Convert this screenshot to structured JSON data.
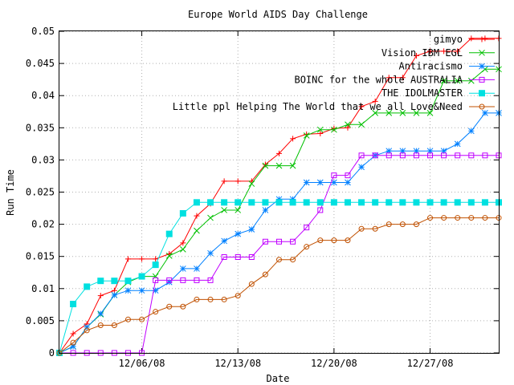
{
  "chart_data": {
    "type": "line",
    "title": "Europe World AIDS Day Challenge",
    "xlabel": "Date",
    "ylabel": "Run Time",
    "xlim": [
      "2008-11-30",
      "2009-01-01"
    ],
    "ylim": [
      0,
      0.05
    ],
    "x_ticks": [
      {
        "label": "12/06/08",
        "value": "2008-12-06"
      },
      {
        "label": "12/13/08",
        "value": "2008-12-13"
      },
      {
        "label": "12/20/08",
        "value": "2008-12-20"
      },
      {
        "label": "12/27/08",
        "value": "2008-12-27"
      }
    ],
    "y_ticks": [
      "0",
      "0.005",
      "0.01",
      "0.015",
      "0.02",
      "0.025",
      "0.03",
      "0.035",
      "0.04",
      "0.045",
      "0.05"
    ],
    "legend_position": "top-right",
    "x": [
      "2008-11-30",
      "2008-12-01",
      "2008-12-02",
      "2008-12-03",
      "2008-12-04",
      "2008-12-05",
      "2008-12-06",
      "2008-12-07",
      "2008-12-08",
      "2008-12-09",
      "2008-12-10",
      "2008-12-11",
      "2008-12-12",
      "2008-12-13",
      "2008-12-14",
      "2008-12-15",
      "2008-12-16",
      "2008-12-17",
      "2008-12-18",
      "2008-12-19",
      "2008-12-20",
      "2008-12-21",
      "2008-12-22",
      "2008-12-23",
      "2008-12-24",
      "2008-12-25",
      "2008-12-26",
      "2008-12-27",
      "2008-12-28",
      "2008-12-29",
      "2008-12-30",
      "2008-12-31",
      "2009-01-01"
    ],
    "series": [
      {
        "name": "gimyo",
        "color": "#ff0000",
        "marker": "plus",
        "values": [
          0,
          0.003,
          0.0045,
          0.0089,
          0.0097,
          0.0146,
          0.0146,
          0.0146,
          0.0154,
          0.0171,
          0.0213,
          0.0232,
          0.0267,
          0.0267,
          0.0267,
          0.0293,
          0.031,
          0.0333,
          0.034,
          0.0341,
          0.0349,
          0.035,
          0.0383,
          0.0391,
          0.0428,
          0.0428,
          0.0462,
          0.0469,
          0.0469,
          0.0469,
          0.0489,
          0.0489,
          0.0489
        ]
      },
      {
        "name": "Vision IBM EGL",
        "color": "#00c000",
        "marker": "x",
        "values": [
          0,
          0.001,
          0.004,
          0.006,
          0.009,
          0.011,
          0.0119,
          0.0119,
          0.0151,
          0.0161,
          0.019,
          0.021,
          0.0222,
          0.0222,
          0.0263,
          0.0291,
          0.0291,
          0.0291,
          0.0338,
          0.0347,
          0.0347,
          0.0355,
          0.0355,
          0.0373,
          0.0373,
          0.0373,
          0.0373,
          0.0373,
          0.0423,
          0.0423,
          0.0423,
          0.0441,
          0.0441
        ]
      },
      {
        "name": "Antiracismo",
        "color": "#0080ff",
        "marker": "star",
        "values": [
          0,
          0.001,
          0.004,
          0.0061,
          0.009,
          0.0097,
          0.0097,
          0.0097,
          0.011,
          0.0131,
          0.0131,
          0.0155,
          0.0174,
          0.0185,
          0.0192,
          0.0222,
          0.0239,
          0.0239,
          0.0265,
          0.0265,
          0.0265,
          0.0265,
          0.0289,
          0.0307,
          0.0314,
          0.0314,
          0.0314,
          0.0314,
          0.0314,
          0.0325,
          0.0345,
          0.0373,
          0.0373
        ]
      },
      {
        "name": "BOINC for the whole AUSTRALIA",
        "color": "#c000ff",
        "marker": "box",
        "values": [
          0,
          0,
          0,
          0,
          0,
          0,
          0,
          0.0113,
          0.0113,
          0.0113,
          0.0113,
          0.0113,
          0.0149,
          0.0149,
          0.0149,
          0.0173,
          0.0173,
          0.0173,
          0.0195,
          0.0222,
          0.0276,
          0.0276,
          0.0307,
          0.0307,
          0.0307,
          0.0307,
          0.0307,
          0.0307,
          0.0307,
          0.0307,
          0.0307,
          0.0307,
          0.0307
        ]
      },
      {
        "name": "THE IDOLMASTER",
        "color": "#00e0e0",
        "marker": "filledbox",
        "values": [
          0,
          0.0076,
          0.0103,
          0.0112,
          0.0112,
          0.0112,
          0.0119,
          0.0137,
          0.0185,
          0.0217,
          0.0234,
          0.0234,
          0.0234,
          0.0234,
          0.0234,
          0.0234,
          0.0234,
          0.0234,
          0.0234,
          0.0234,
          0.0234,
          0.0234,
          0.0234,
          0.0234,
          0.0234,
          0.0234,
          0.0234,
          0.0234,
          0.0234,
          0.0234,
          0.0234,
          0.0234,
          0.0234
        ]
      },
      {
        "name": "Little ppl Helping The World that we all Love&Need",
        "color": "#c05000",
        "marker": "circle",
        "values": [
          0,
          0.0016,
          0.0035,
          0.0043,
          0.0043,
          0.0052,
          0.0052,
          0.0064,
          0.0072,
          0.0072,
          0.0083,
          0.0083,
          0.0083,
          0.0089,
          0.0107,
          0.0122,
          0.0145,
          0.0145,
          0.0165,
          0.0175,
          0.0175,
          0.0175,
          0.0193,
          0.0193,
          0.02,
          0.02,
          0.02,
          0.021,
          0.021,
          0.021,
          0.021,
          0.021,
          0.021
        ]
      }
    ]
  }
}
